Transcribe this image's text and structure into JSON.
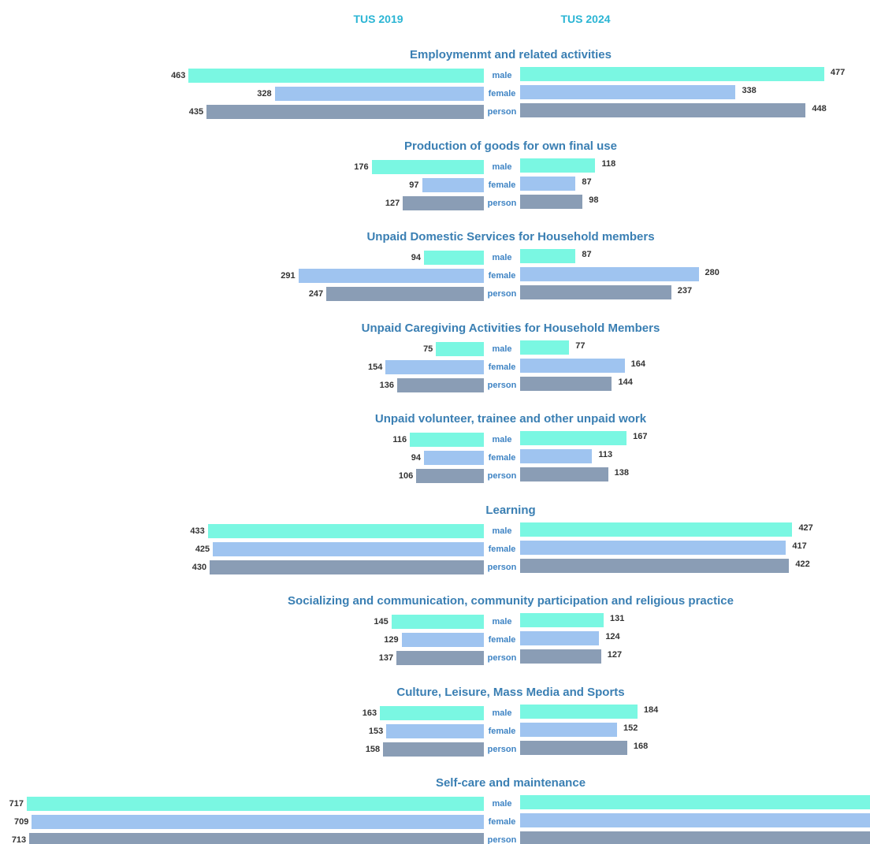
{
  "chart_data": {
    "type": "bar",
    "orientation": "horizontal-butterfly",
    "headers": [
      "TUS 2019",
      "TUS 2024"
    ],
    "categories": [
      "male",
      "female",
      "person"
    ],
    "colors": {
      "male": "#7af7e2",
      "female": "#9fc4f0",
      "person": "#8a9db5",
      "header": "#2bb5d4",
      "title": "#3a7fb3",
      "category_label": "#3f84c4"
    },
    "groups": [
      {
        "title": "Employmenmt and related activities",
        "tus2019": [
          463,
          328,
          435
        ],
        "tus2024": [
          477,
          338,
          448
        ]
      },
      {
        "title": "Production of goods for own final use",
        "tus2019": [
          176,
          97,
          127
        ],
        "tus2024": [
          118,
          87,
          98
        ]
      },
      {
        "title": "Unpaid Domestic Services for Household members",
        "tus2019": [
          94,
          291,
          247
        ],
        "tus2024": [
          87,
          280,
          237
        ]
      },
      {
        "title": "Unpaid Caregiving Activities for Household Members",
        "tus2019": [
          75,
          154,
          136
        ],
        "tus2024": [
          77,
          164,
          144
        ]
      },
      {
        "title": "Unpaid volunteer, trainee and other unpaid work",
        "tus2019": [
          116,
          94,
          106
        ],
        "tus2024": [
          167,
          113,
          138
        ]
      },
      {
        "title": "Learning",
        "tus2019": [
          433,
          425,
          430
        ],
        "tus2024": [
          427,
          417,
          422
        ]
      },
      {
        "title": "Socializing and communication, community participation and religious practice",
        "tus2019": [
          145,
          129,
          137
        ],
        "tus2024": [
          131,
          124,
          127
        ]
      },
      {
        "title": "Culture, Leisure, Mass Media and Sports",
        "tus2019": [
          163,
          153,
          158
        ],
        "tus2024": [
          184,
          152,
          168
        ]
      },
      {
        "title": "Self-care and maintenance",
        "tus2019": [
          717,
          709,
          713
        ],
        "tus2024": [
          null,
          null,
          null
        ]
      }
    ]
  }
}
